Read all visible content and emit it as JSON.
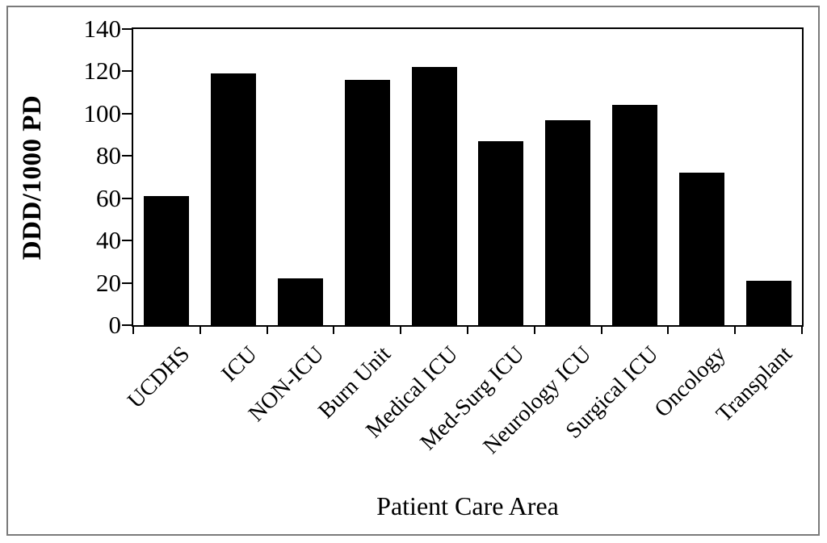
{
  "figure": {
    "background_color": "#ffffff",
    "outer_border_color": "#7a7a7a",
    "axis_color": "#000000",
    "text_color": "#000000"
  },
  "chart_data": {
    "type": "bar",
    "title": "",
    "xlabel": "Patient Care Area",
    "ylabel": "DDD/1000 PD",
    "categories": [
      "UCDHS",
      "ICU",
      "NON-ICU",
      "Burn Unit",
      "Medical ICU",
      "Med-Surg ICU",
      "Neurology ICU",
      "Surgical ICU",
      "Oncology",
      "Transplant"
    ],
    "values": [
      61,
      119,
      22,
      116,
      122,
      87,
      97,
      104,
      72,
      21
    ],
    "ylim": [
      0,
      140
    ],
    "yticks": [
      0,
      20,
      40,
      60,
      80,
      100,
      120,
      140
    ],
    "bar_color": "#000000",
    "grid": false,
    "legend_position": "none",
    "x_labels_rotation_deg": 45
  }
}
